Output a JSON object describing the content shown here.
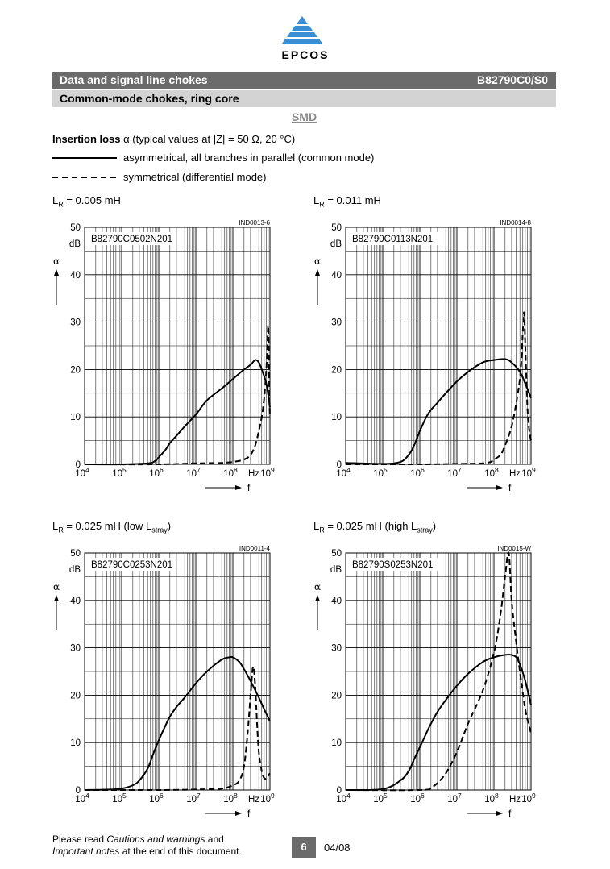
{
  "header": {
    "brand": "EPCOS",
    "section_title": "Data and signal line chokes",
    "part_number": "B82790C0/S0",
    "subtitle": "Common-mode chokes, ring core",
    "package": "SMD"
  },
  "insertion_loss": {
    "label_bold": "Insertion loss",
    "label_rest": "α (typical values at |Z| = 50 Ω, 20 °C)",
    "legend_solid": "asymmetrical, all branches in parallel (common mode)",
    "legend_dashed": "symmetrical (differential mode)"
  },
  "chart_data": [
    {
      "type": "line",
      "title": "LR = 0.005 mH",
      "title_main": "L",
      "title_sub": "R",
      "title_rest": " = 0.005 mH",
      "title_after_sub": "",
      "code": "IND0013-6",
      "part": "B82790C0502N201",
      "xlabel": "f",
      "xunit": "Hz",
      "ylabel": "α",
      "yunit": "dB",
      "x_log": true,
      "xlim": [
        10000,
        1000000000
      ],
      "ylim": [
        0,
        50
      ],
      "yticks": [
        0,
        10,
        20,
        30,
        40,
        50
      ],
      "xtick_labels": [
        "10^4",
        "10^5",
        "10^6",
        "10^7",
        "10^8",
        "10^9"
      ],
      "grid": true,
      "series": [
        {
          "name": "asymmetrical",
          "style": "solid",
          "x": [
            10000,
            100000,
            500000,
            800000,
            1000000,
            1500000,
            2000000,
            3000000,
            5000000,
            10000000,
            20000000,
            50000000,
            100000000,
            200000000,
            300000000,
            400000000,
            500000000,
            600000000,
            800000000,
            1000000000
          ],
          "y": [
            0,
            0,
            0.2,
            0.7,
            1.5,
            3,
            4.5,
            6,
            8,
            10.5,
            13.5,
            16,
            18,
            20,
            21,
            22,
            21.5,
            20,
            17,
            12
          ]
        },
        {
          "name": "symmetrical",
          "style": "dashed",
          "x": [
            10000,
            1000000,
            10000000,
            50000000,
            100000000,
            200000000,
            300000000,
            400000000,
            500000000,
            600000000,
            700000000,
            800000000,
            850000000,
            900000000,
            950000000,
            1000000000
          ],
          "y": [
            0,
            0,
            0.2,
            0.3,
            0.5,
            1,
            2,
            4,
            7,
            10,
            14,
            20,
            25,
            29,
            18,
            10
          ]
        }
      ]
    },
    {
      "type": "line",
      "title": "LR = 0.011 mH",
      "title_main": "L",
      "title_sub": "R",
      "title_rest": " = 0.011 mH",
      "title_after_sub": "",
      "code": "IND0014-8",
      "part": "B82790C0113N201",
      "xlabel": "f",
      "xunit": "Hz",
      "ylabel": "α",
      "yunit": "dB",
      "x_log": true,
      "xlim": [
        10000,
        1000000000
      ],
      "ylim": [
        0,
        50
      ],
      "yticks": [
        0,
        10,
        20,
        30,
        40,
        50
      ],
      "xtick_labels": [
        "10^4",
        "10^5",
        "10^6",
        "10^7",
        "10^8",
        "10^9"
      ],
      "grid": true,
      "series": [
        {
          "name": "asymmetrical",
          "style": "solid",
          "x": [
            10000,
            100000,
            300000,
            500000,
            700000,
            1000000,
            1500000,
            2000000,
            3000000,
            5000000,
            10000000,
            20000000,
            50000000,
            100000000,
            200000000,
            300000000,
            500000000,
            700000000,
            1000000000
          ],
          "y": [
            0.3,
            0.1,
            0.5,
            2,
            4,
            7,
            10,
            11.5,
            13,
            15,
            17.5,
            19.5,
            21.5,
            22,
            22.2,
            21.5,
            19.5,
            17,
            14
          ]
        },
        {
          "name": "symmetrical",
          "style": "dashed",
          "x": [
            10000,
            1000000,
            10000000,
            50000000,
            80000000,
            100000000,
            150000000,
            200000000,
            300000000,
            400000000,
            500000000,
            550000000,
            600000000,
            650000000,
            700000000,
            800000000,
            900000000,
            1000000000
          ],
          "y": [
            0,
            0,
            0.1,
            0.2,
            0.5,
            1,
            2,
            4,
            8,
            13,
            18,
            22,
            28,
            32,
            25,
            12,
            7,
            5
          ]
        }
      ]
    },
    {
      "type": "line",
      "title": "LR = 0.025 mH (low Lstray)",
      "title_main": "L",
      "title_sub": "R",
      "title_rest": " = 0.025 mH (low L",
      "title_sub2": "stray",
      "title_after_sub": ")",
      "code": "IND0011-4",
      "part": "B82790C0253N201",
      "xlabel": "f",
      "xunit": "Hz",
      "ylabel": "α",
      "yunit": "dB",
      "x_log": true,
      "xlim": [
        10000,
        1000000000
      ],
      "ylim": [
        0,
        50
      ],
      "yticks": [
        0,
        10,
        20,
        30,
        40,
        50
      ],
      "xtick_labels": [
        "10^4",
        "10^5",
        "10^6",
        "10^7",
        "10^8",
        "10^9"
      ],
      "grid": true,
      "series": [
        {
          "name": "asymmetrical",
          "style": "solid",
          "x": [
            10000,
            50000,
            100000,
            200000,
            300000,
            500000,
            700000,
            1000000,
            1500000,
            2000000,
            3000000,
            5000000,
            10000000,
            20000000,
            50000000,
            80000000,
            100000000,
            150000000,
            200000000,
            300000000,
            500000000,
            700000000,
            1000000000
          ],
          "y": [
            0,
            0.1,
            0.3,
            1,
            2,
            4.5,
            7.5,
            10.5,
            13.5,
            15.5,
            17.5,
            19.5,
            22.5,
            25,
            27.5,
            28,
            28,
            27,
            25.5,
            23,
            19.5,
            17,
            14.5
          ]
        },
        {
          "name": "symmetrical",
          "style": "dashed",
          "x": [
            10000,
            1000000,
            10000000,
            50000000,
            100000000,
            150000000,
            200000000,
            250000000,
            300000000,
            350000000,
            400000000,
            450000000,
            500000000,
            600000000,
            700000000,
            800000000,
            900000000,
            1000000000
          ],
          "y": [
            0,
            0,
            0.1,
            0.3,
            1,
            2,
            5,
            12,
            20,
            26,
            22,
            14,
            8,
            4,
            2.5,
            2.5,
            3,
            3.5
          ]
        }
      ]
    },
    {
      "type": "line",
      "title": "LR = 0.025 mH (high Lstray)",
      "title_main": "L",
      "title_sub": "R",
      "title_rest": " = 0.025 mH (high L",
      "title_sub2": "stray",
      "title_after_sub": ")",
      "code": "IND0015-W",
      "part": "B82790S0253N201",
      "xlabel": "f",
      "xunit": "Hz",
      "ylabel": "α",
      "yunit": "dB",
      "x_log": true,
      "xlim": [
        10000,
        1000000000
      ],
      "ylim": [
        0,
        50
      ],
      "yticks": [
        0,
        10,
        20,
        30,
        40,
        50
      ],
      "xtick_labels": [
        "10^4",
        "10^5",
        "10^6",
        "10^7",
        "10^8",
        "10^9"
      ],
      "grid": true,
      "series": [
        {
          "name": "asymmetrical",
          "style": "solid",
          "x": [
            10000,
            100000,
            300000,
            500000,
            700000,
            1000000,
            1500000,
            2000000,
            3000000,
            5000000,
            10000000,
            20000000,
            50000000,
            100000000,
            200000000,
            300000000,
            400000000,
            500000000,
            700000000,
            1000000000
          ],
          "y": [
            0,
            0.2,
            2,
            4,
            6.5,
            9,
            12,
            14,
            16.5,
            19,
            22,
            24.5,
            27,
            28,
            28.5,
            28.5,
            28,
            26.5,
            23,
            18
          ]
        },
        {
          "name": "symmetrical",
          "style": "dashed",
          "x": [
            10000,
            1000000,
            2000000,
            3000000,
            5000000,
            10000000,
            20000000,
            50000000,
            100000000,
            150000000,
            200000000,
            250000000,
            300000000,
            400000000,
            500000000,
            700000000,
            1000000000
          ],
          "y": [
            0,
            0,
            0.5,
            1.5,
            3.5,
            8,
            14,
            21,
            29,
            37,
            45,
            50,
            40,
            31,
            25,
            17,
            12
          ]
        }
      ]
    }
  ],
  "footer": {
    "note_prefix": "Please read ",
    "note_em1": "Cautions and warnings",
    "note_mid": " and",
    "note_em2": "Important notes",
    "note_suffix": " at the end of this document.",
    "page": "6",
    "date": "04/08"
  }
}
